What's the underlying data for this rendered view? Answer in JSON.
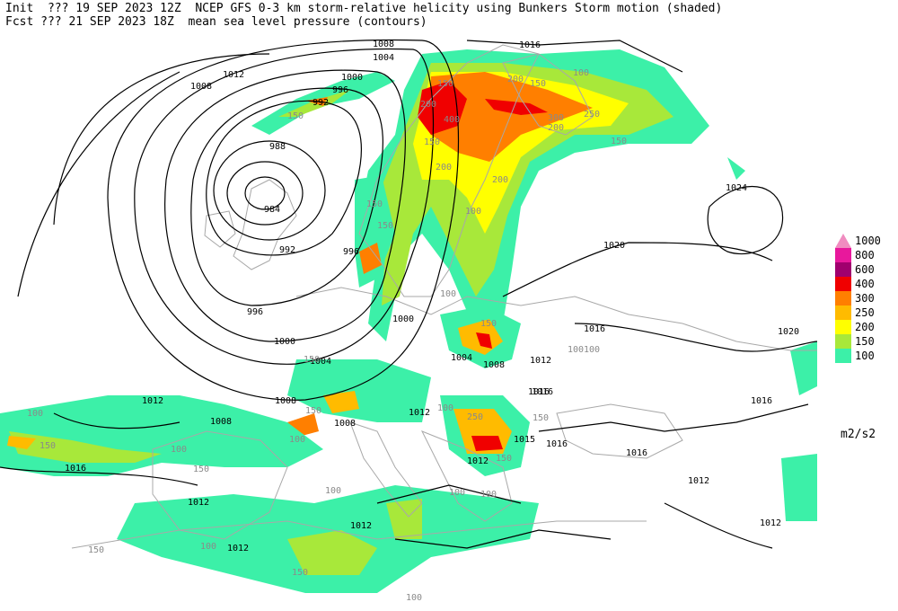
{
  "header": {
    "line1": "Init  ??? 19 SEP 2023 12Z  NCEP GFS 0-3 km storm-relative helicity using Bunkers Storm motion (shaded)",
    "line2": "Fcst ??? 21 SEP 2023 18Z  mean sea level pressure (contours)"
  },
  "legend": {
    "levels": [
      {
        "label": "1000",
        "color": "#f08cc0"
      },
      {
        "label": "800",
        "color": "#e8189c"
      },
      {
        "label": "600",
        "color": "#a0006e"
      },
      {
        "label": "400",
        "color": "#f00000"
      },
      {
        "label": "300",
        "color": "#ff7f00"
      },
      {
        "label": "250",
        "color": "#ffbb00"
      },
      {
        "label": "200",
        "color": "#ffff00"
      },
      {
        "label": "150",
        "color": "#a8e83a"
      },
      {
        "label": "100",
        "color": "#3cf0a8"
      }
    ],
    "units": "m2/s2"
  },
  "pressure_labels": [
    "1008",
    "1016",
    "1012",
    "1004",
    "1008",
    "996",
    "1000",
    "992",
    "988",
    "984",
    "992",
    "996",
    "1000",
    "996",
    "1004",
    "1000",
    "1024",
    "1020",
    "1016",
    "1020",
    "1016",
    "1008",
    "1004",
    "1012",
    "1016",
    "1012",
    "1008",
    "1008",
    "1008",
    "1016",
    "1012",
    "1015",
    "1016",
    "1016",
    "1012",
    "1012",
    "1012",
    "1012",
    "1012",
    "1012",
    "1016"
  ],
  "helicity_labels": [
    "100",
    "200",
    "150",
    "150",
    "300",
    "200",
    "250",
    "150",
    "400",
    "200",
    "200",
    "150",
    "100",
    "150",
    "200",
    "150",
    "100",
    "150",
    "150",
    "150",
    "100",
    "100",
    "150",
    "100",
    "150",
    "100",
    "250",
    "150",
    "100",
    "100",
    "150",
    "150",
    "150",
    "100",
    "100",
    "150",
    "100",
    "100",
    "100"
  ],
  "colors": {
    "contour": "#000000",
    "coastline": "#a8a8a8",
    "background": "#ffffff"
  }
}
